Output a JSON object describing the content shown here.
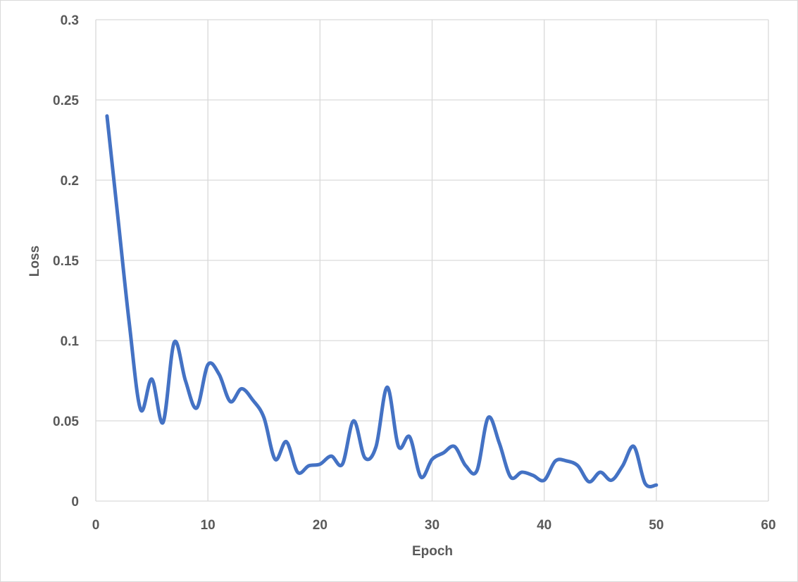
{
  "chart_data": {
    "type": "line",
    "title": "",
    "xlabel": "Epoch",
    "ylabel": "Loss",
    "xlim": [
      0,
      60
    ],
    "ylim": [
      0,
      0.3
    ],
    "x_ticks": [
      "0",
      "10",
      "20",
      "30",
      "40",
      "50",
      "60"
    ],
    "y_ticks": [
      "0",
      "0.05",
      "0.1",
      "0.15",
      "0.2",
      "0.25",
      "0.3"
    ],
    "grid": true,
    "smooth": true,
    "series": [
      {
        "color": "#4472c4",
        "x": [
          1,
          2,
          3,
          4,
          5,
          6,
          7,
          8,
          9,
          10,
          11,
          12,
          13,
          14,
          15,
          16,
          17,
          18,
          19,
          20,
          21,
          22,
          23,
          24,
          25,
          26,
          27,
          28,
          29,
          30,
          31,
          32,
          33,
          34,
          35,
          36,
          37,
          38,
          39,
          40,
          41,
          42,
          43,
          44,
          45,
          46,
          47,
          48,
          49,
          50
        ],
        "y": [
          0.24,
          0.175,
          0.11,
          0.057,
          0.076,
          0.049,
          0.099,
          0.075,
          0.058,
          0.085,
          0.079,
          0.062,
          0.07,
          0.063,
          0.052,
          0.026,
          0.037,
          0.018,
          0.022,
          0.023,
          0.028,
          0.023,
          0.05,
          0.027,
          0.034,
          0.071,
          0.034,
          0.04,
          0.015,
          0.026,
          0.03,
          0.034,
          0.022,
          0.019,
          0.052,
          0.036,
          0.015,
          0.018,
          0.016,
          0.013,
          0.025,
          0.025,
          0.022,
          0.012,
          0.018,
          0.013,
          0.022,
          0.034,
          0.011,
          0.01
        ]
      }
    ]
  }
}
